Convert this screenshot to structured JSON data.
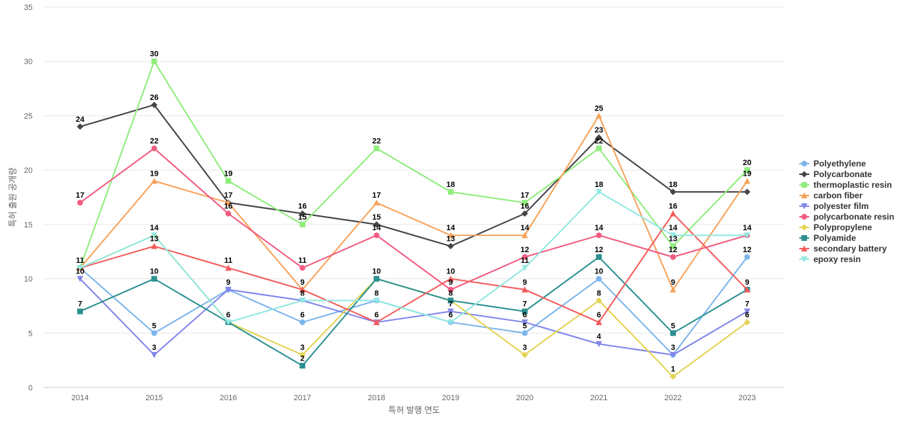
{
  "chart_data": {
    "type": "line",
    "x": [
      "2014",
      "2015",
      "2016",
      "2017",
      "2018",
      "2019",
      "2020",
      "2021",
      "2022",
      "2023"
    ],
    "xlabel": "특허 발행 연도",
    "ylabel": "특허 출원 공개량",
    "ylim": [
      0,
      35
    ],
    "yticks": [
      0,
      5,
      10,
      15,
      20,
      25,
      30,
      35
    ],
    "grid": true,
    "legend_position": "right",
    "series": [
      {
        "name": "Polyethylene",
        "color": "#7cb5ec",
        "marker": "circle",
        "values": [
          11,
          5,
          9,
          6,
          8,
          6,
          5,
          10,
          3,
          12
        ]
      },
      {
        "name": "Polycarbonate",
        "color": "#434348",
        "marker": "diamond",
        "values": [
          24,
          26,
          17,
          16,
          15,
          13,
          16,
          23,
          18,
          18
        ]
      },
      {
        "name": "thermoplastic resin",
        "color": "#90ed7d",
        "marker": "square",
        "values": [
          11,
          30,
          19,
          15,
          22,
          18,
          17,
          22,
          13,
          20
        ]
      },
      {
        "name": "carbon fiber",
        "color": "#f7a35c",
        "marker": "triangle",
        "values": [
          11,
          19,
          17,
          9,
          17,
          14,
          14,
          25,
          9,
          19
        ]
      },
      {
        "name": "polyester film",
        "color": "#8085e9",
        "marker": "triangle-down",
        "values": [
          10,
          3,
          9,
          8,
          6,
          7,
          6,
          4,
          3,
          7
        ]
      },
      {
        "name": "polycarbonate resin",
        "color": "#f15c80",
        "marker": "circle",
        "values": [
          17,
          22,
          16,
          11,
          14,
          9,
          12,
          14,
          12,
          14
        ]
      },
      {
        "name": "Polypropylene",
        "color": "#e4d354",
        "marker": "diamond",
        "values": [
          11,
          14,
          6,
          3,
          10,
          8,
          3,
          8,
          1,
          6
        ]
      },
      {
        "name": "Polyamide",
        "color": "#2b908f",
        "marker": "square",
        "values": [
          7,
          10,
          6,
          2,
          10,
          8,
          7,
          12,
          5,
          9
        ]
      },
      {
        "name": "secondary battery",
        "color": "#f45b5b",
        "marker": "triangle",
        "values": [
          11,
          13,
          11,
          9,
          6,
          10,
          9,
          6,
          16,
          9
        ]
      },
      {
        "name": "epoxy resin",
        "color": "#91e8e1",
        "marker": "triangle-down",
        "values": [
          11,
          14,
          6,
          8,
          8,
          6,
          11,
          18,
          14,
          14
        ]
      }
    ],
    "data_labels": [
      {
        "series": 0,
        "index": 1,
        "text": "5"
      },
      {
        "series": 0,
        "index": 2,
        "text": "9"
      },
      {
        "series": 0,
        "index": 3,
        "text": "6"
      },
      {
        "series": 0,
        "index": 4,
        "text": "8"
      },
      {
        "series": 0,
        "index": 5,
        "text": "6"
      },
      {
        "series": 0,
        "index": 6,
        "text": "5"
      },
      {
        "series": 0,
        "index": 7,
        "text": "10"
      },
      {
        "series": 0,
        "index": 9,
        "text": "12"
      },
      {
        "series": 1,
        "index": 0,
        "text": "24"
      },
      {
        "series": 1,
        "index": 1,
        "text": "26"
      },
      {
        "series": 1,
        "index": 2,
        "text": "17"
      },
      {
        "series": 1,
        "index": 3,
        "text": "16"
      },
      {
        "series": 1,
        "index": 4,
        "text": "15"
      },
      {
        "series": 1,
        "index": 5,
        "text": "13"
      },
      {
        "series": 1,
        "index": 6,
        "text": "16"
      },
      {
        "series": 1,
        "index": 7,
        "text": "23"
      },
      {
        "series": 1,
        "index": 8,
        "text": "18"
      },
      {
        "series": 2,
        "index": 1,
        "text": "30"
      },
      {
        "series": 2,
        "index": 2,
        "text": "19"
      },
      {
        "series": 2,
        "index": 3,
        "text": "15"
      },
      {
        "series": 2,
        "index": 4,
        "text": "22"
      },
      {
        "series": 2,
        "index": 5,
        "text": "18"
      },
      {
        "series": 2,
        "index": 6,
        "text": "17"
      },
      {
        "series": 2,
        "index": 7,
        "text": "22"
      },
      {
        "series": 2,
        "index": 8,
        "text": "13"
      },
      {
        "series": 2,
        "index": 9,
        "text": "20"
      },
      {
        "series": 3,
        "index": 1,
        "text": "19"
      },
      {
        "series": 3,
        "index": 4,
        "text": "17"
      },
      {
        "series": 3,
        "index": 5,
        "text": "14"
      },
      {
        "series": 3,
        "index": 6,
        "text": "14"
      },
      {
        "series": 3,
        "index": 7,
        "text": "25"
      },
      {
        "series": 3,
        "index": 8,
        "text": "9"
      },
      {
        "series": 3,
        "index": 9,
        "text": "19"
      },
      {
        "series": 4,
        "index": 0,
        "text": "10"
      },
      {
        "series": 4,
        "index": 1,
        "text": "3"
      },
      {
        "series": 4,
        "index": 3,
        "text": "8"
      },
      {
        "series": 4,
        "index": 5,
        "text": "7"
      },
      {
        "series": 4,
        "index": 6,
        "text": "6"
      },
      {
        "series": 4,
        "index": 7,
        "text": "4"
      },
      {
        "series": 4,
        "index": 8,
        "text": "3"
      },
      {
        "series": 4,
        "index": 9,
        "text": "7"
      },
      {
        "series": 5,
        "index": 0,
        "text": "17"
      },
      {
        "series": 5,
        "index": 1,
        "text": "22"
      },
      {
        "series": 5,
        "index": 2,
        "text": "16"
      },
      {
        "series": 5,
        "index": 3,
        "text": "11"
      },
      {
        "series": 5,
        "index": 4,
        "text": "14"
      },
      {
        "series": 5,
        "index": 5,
        "text": "9"
      },
      {
        "series": 5,
        "index": 6,
        "text": "12"
      },
      {
        "series": 5,
        "index": 7,
        "text": "14"
      },
      {
        "series": 5,
        "index": 8,
        "text": "12"
      },
      {
        "series": 6,
        "index": 3,
        "text": "3"
      },
      {
        "series": 6,
        "index": 5,
        "text": "8"
      },
      {
        "series": 6,
        "index": 6,
        "text": "3"
      },
      {
        "series": 6,
        "index": 7,
        "text": "8"
      },
      {
        "series": 6,
        "index": 8,
        "text": "1"
      },
      {
        "series": 6,
        "index": 9,
        "text": "6"
      },
      {
        "series": 7,
        "index": 0,
        "text": "7"
      },
      {
        "series": 7,
        "index": 1,
        "text": "10"
      },
      {
        "series": 7,
        "index": 2,
        "text": "6"
      },
      {
        "series": 7,
        "index": 3,
        "text": "2"
      },
      {
        "series": 7,
        "index": 4,
        "text": "10"
      },
      {
        "series": 7,
        "index": 6,
        "text": "7"
      },
      {
        "series": 7,
        "index": 7,
        "text": "12"
      },
      {
        "series": 7,
        "index": 8,
        "text": "5"
      },
      {
        "series": 7,
        "index": 9,
        "text": "9"
      },
      {
        "series": 8,
        "index": 0,
        "text": "11"
      },
      {
        "series": 8,
        "index": 1,
        "text": "13"
      },
      {
        "series": 8,
        "index": 2,
        "text": "11"
      },
      {
        "series": 8,
        "index": 3,
        "text": "9"
      },
      {
        "series": 8,
        "index": 4,
        "text": "6"
      },
      {
        "series": 8,
        "index": 5,
        "text": "10"
      },
      {
        "series": 8,
        "index": 6,
        "text": "9"
      },
      {
        "series": 8,
        "index": 7,
        "text": "6"
      },
      {
        "series": 8,
        "index": 8,
        "text": "16"
      },
      {
        "series": 9,
        "index": 1,
        "text": "14"
      },
      {
        "series": 9,
        "index": 6,
        "text": "11"
      },
      {
        "series": 9,
        "index": 7,
        "text": "18"
      },
      {
        "series": 9,
        "index": 8,
        "text": "14"
      },
      {
        "series": 9,
        "index": 9,
        "text": "14"
      }
    ]
  }
}
